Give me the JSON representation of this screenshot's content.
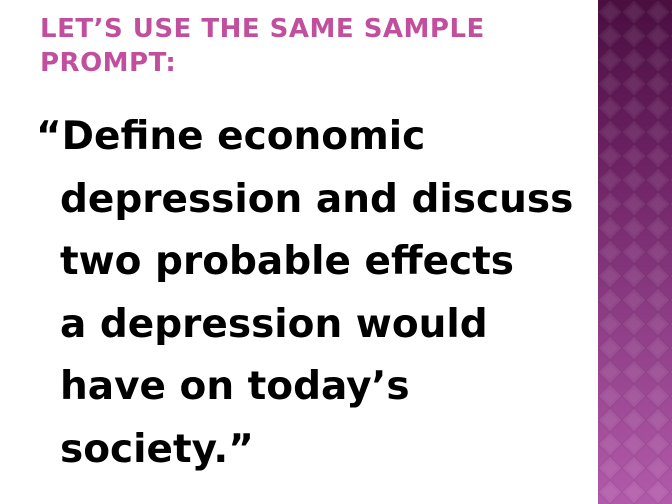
{
  "slide": {
    "title": "Let’s use the same sample prompt:",
    "prompt_lines": [
      "“Define economic",
      "depression and discuss",
      "two probable effects",
      "a depression would",
      "have on today’s",
      "society.”"
    ]
  },
  "colors": {
    "title": "#c24f9e",
    "body_text": "#000000",
    "side_panel_dark": "#4a0e40",
    "side_panel_light": "#b25aaa"
  }
}
